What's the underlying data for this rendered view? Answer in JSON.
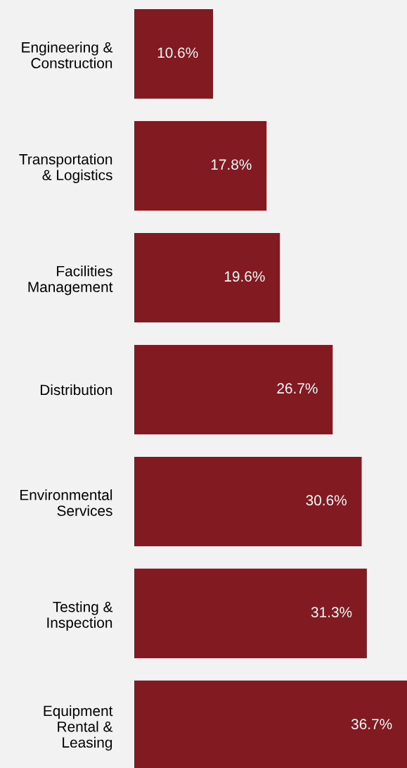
{
  "chart_data": {
    "type": "bar",
    "orientation": "horizontal",
    "categories": [
      "Engineering &\nConstruction",
      "Transportation\n& Logistics",
      "Facilities\nManagement",
      "Distribution",
      "Environmental\nServices",
      "Testing &\nInspection",
      "Equipment\nRental &\nLeasing"
    ],
    "values": [
      10.6,
      17.8,
      19.6,
      26.7,
      30.6,
      31.3,
      36.7
    ],
    "color": "#821a22",
    "value_labels": [
      "10.6%",
      "17.8%",
      "19.6%",
      "26.7%",
      "30.6%",
      "31.3%",
      "36.7%"
    ],
    "tick_labels": "y",
    "grid": false,
    "legend": false
  }
}
